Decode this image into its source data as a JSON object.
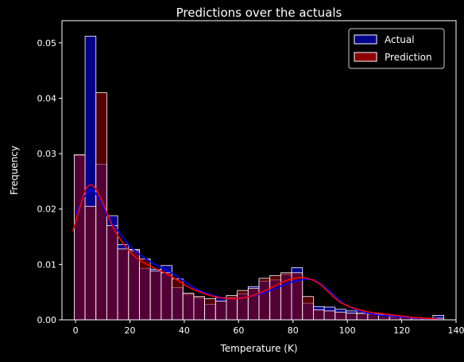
{
  "chart_data": {
    "type": "bar",
    "title": "Predictions over the actuals",
    "xlabel": "Temperature (K)",
    "ylabel": "Frequency",
    "xlim": [
      -5,
      140
    ],
    "ylim": [
      0,
      0.054
    ],
    "xticks": [
      0,
      20,
      40,
      60,
      80,
      100,
      120,
      140
    ],
    "yticks": [
      0.0,
      0.01,
      0.02,
      0.03,
      0.04,
      0.05
    ],
    "ytick_labels": [
      "0.00",
      "0.01",
      "0.02",
      "0.03",
      "0.04",
      "0.05"
    ],
    "bin_start": -0.5,
    "bin_width": 4.0,
    "grid": false,
    "legend_position": "top-right",
    "series": [
      {
        "name": "Actual",
        "color": "#00008b",
        "kde_color": "#0000ff",
        "values": [
          0.0297,
          0.0512,
          0.0281,
          0.0188,
          0.0136,
          0.0127,
          0.0093,
          0.0091,
          0.0098,
          0.0058,
          0.0046,
          0.004,
          0.0028,
          0.004,
          0.004,
          0.0047,
          0.006,
          0.007,
          0.0072,
          0.0082,
          0.0094,
          0.003,
          0.0024,
          0.0023,
          0.0019,
          0.0016,
          0.0011,
          0.001,
          0.0008,
          0.0005,
          0.0004,
          0.0002,
          0.0002,
          0.0008
        ],
        "kde_x": [
          0,
          3,
          6,
          9,
          12,
          16,
          20,
          25,
          30,
          35,
          40,
          45,
          50,
          55,
          60,
          65,
          70,
          75,
          80,
          85,
          88,
          92,
          96,
          100,
          105,
          110,
          115,
          120,
          125,
          130,
          134
        ],
        "kde_y": [
          0.019,
          0.022,
          0.0235,
          0.0215,
          0.0185,
          0.0158,
          0.0133,
          0.0113,
          0.0098,
          0.0086,
          0.0069,
          0.0054,
          0.0045,
          0.0039,
          0.0039,
          0.0043,
          0.005,
          0.006,
          0.0069,
          0.0073,
          0.0071,
          0.0058,
          0.004,
          0.0025,
          0.0015,
          0.001,
          0.0007,
          0.0005,
          0.0003,
          0.0002,
          0.0001
        ]
      },
      {
        "name": "Prediction",
        "color": "#8b0000",
        "kde_color": "#ff0000",
        "values": [
          0.0298,
          0.0205,
          0.041,
          0.017,
          0.0128,
          0.0125,
          0.011,
          0.0088,
          0.0085,
          0.0074,
          0.0048,
          0.0042,
          0.0038,
          0.0034,
          0.0044,
          0.0053,
          0.0057,
          0.0075,
          0.008,
          0.0085,
          0.0085,
          0.0042,
          0.0018,
          0.0016,
          0.0014,
          0.0012,
          0.0012,
          0.0011,
          0.001,
          0.0007,
          0.0005,
          0.0004,
          0.0003,
          0.0003
        ],
        "kde_x": [
          -1,
          2,
          4,
          6,
          8,
          11,
          14,
          18,
          22,
          27,
          32,
          37,
          42,
          47,
          52,
          57,
          62,
          67,
          72,
          77,
          82,
          86,
          90,
          94,
          98,
          103,
          108,
          113,
          118,
          123,
          128,
          133
        ],
        "kde_y": [
          0.016,
          0.021,
          0.0238,
          0.0243,
          0.0232,
          0.02,
          0.0165,
          0.0135,
          0.0113,
          0.0098,
          0.0087,
          0.0073,
          0.0058,
          0.0048,
          0.0041,
          0.0038,
          0.004,
          0.0047,
          0.0058,
          0.007,
          0.0076,
          0.0074,
          0.0064,
          0.0046,
          0.003,
          0.002,
          0.0014,
          0.0011,
          0.0008,
          0.0005,
          0.0003,
          0.0002
        ]
      }
    ]
  }
}
